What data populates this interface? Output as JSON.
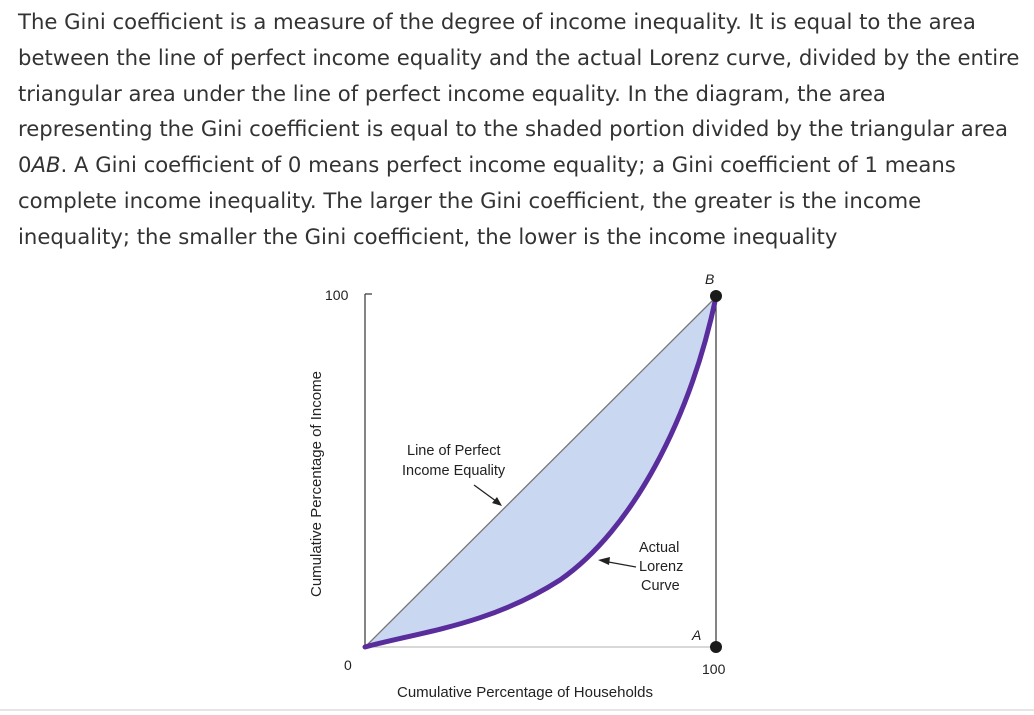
{
  "paragraph": {
    "part1": "The Gini coefficient is a measure of the degree of income inequality. It is equal to the area between the line of perfect income equality and the actual Lorenz curve, divided by the entire triangular area under the line of perfect income equality. In the diagram, the area representing the Gini coefficient is equal to the shaded portion divided by the triangular area ",
    "zero": "0",
    "ab": "AB",
    "part2": ". A Gini coefficient of 0 means perfect income equality; a Gini coefficient of 1 means complete income inequality. The larger the Gini coefficient, the greater is the income inequality; the smaller the Gini coefficient, the lower is the income inequality"
  },
  "diagram": {
    "y_axis_label": "Cumulative Percentage of Income",
    "x_axis_label": "Cumulative Percentage of Households",
    "y_tick_top": "100",
    "origin_label": "0",
    "x_tick_right": "100",
    "point_a": "A",
    "point_b": "B",
    "equality_line_label": [
      "Line of Perfect",
      "Income Equality"
    ],
    "lorenz_curve_label": [
      "Actual",
      "Lorenz",
      "Curve"
    ],
    "colors": {
      "shaded_area": "#c9d7f0",
      "equality_line": "#777777",
      "lorenz_curve": "#5a2d9c",
      "points": "#1a1a1a",
      "axes": "#333333"
    }
  }
}
